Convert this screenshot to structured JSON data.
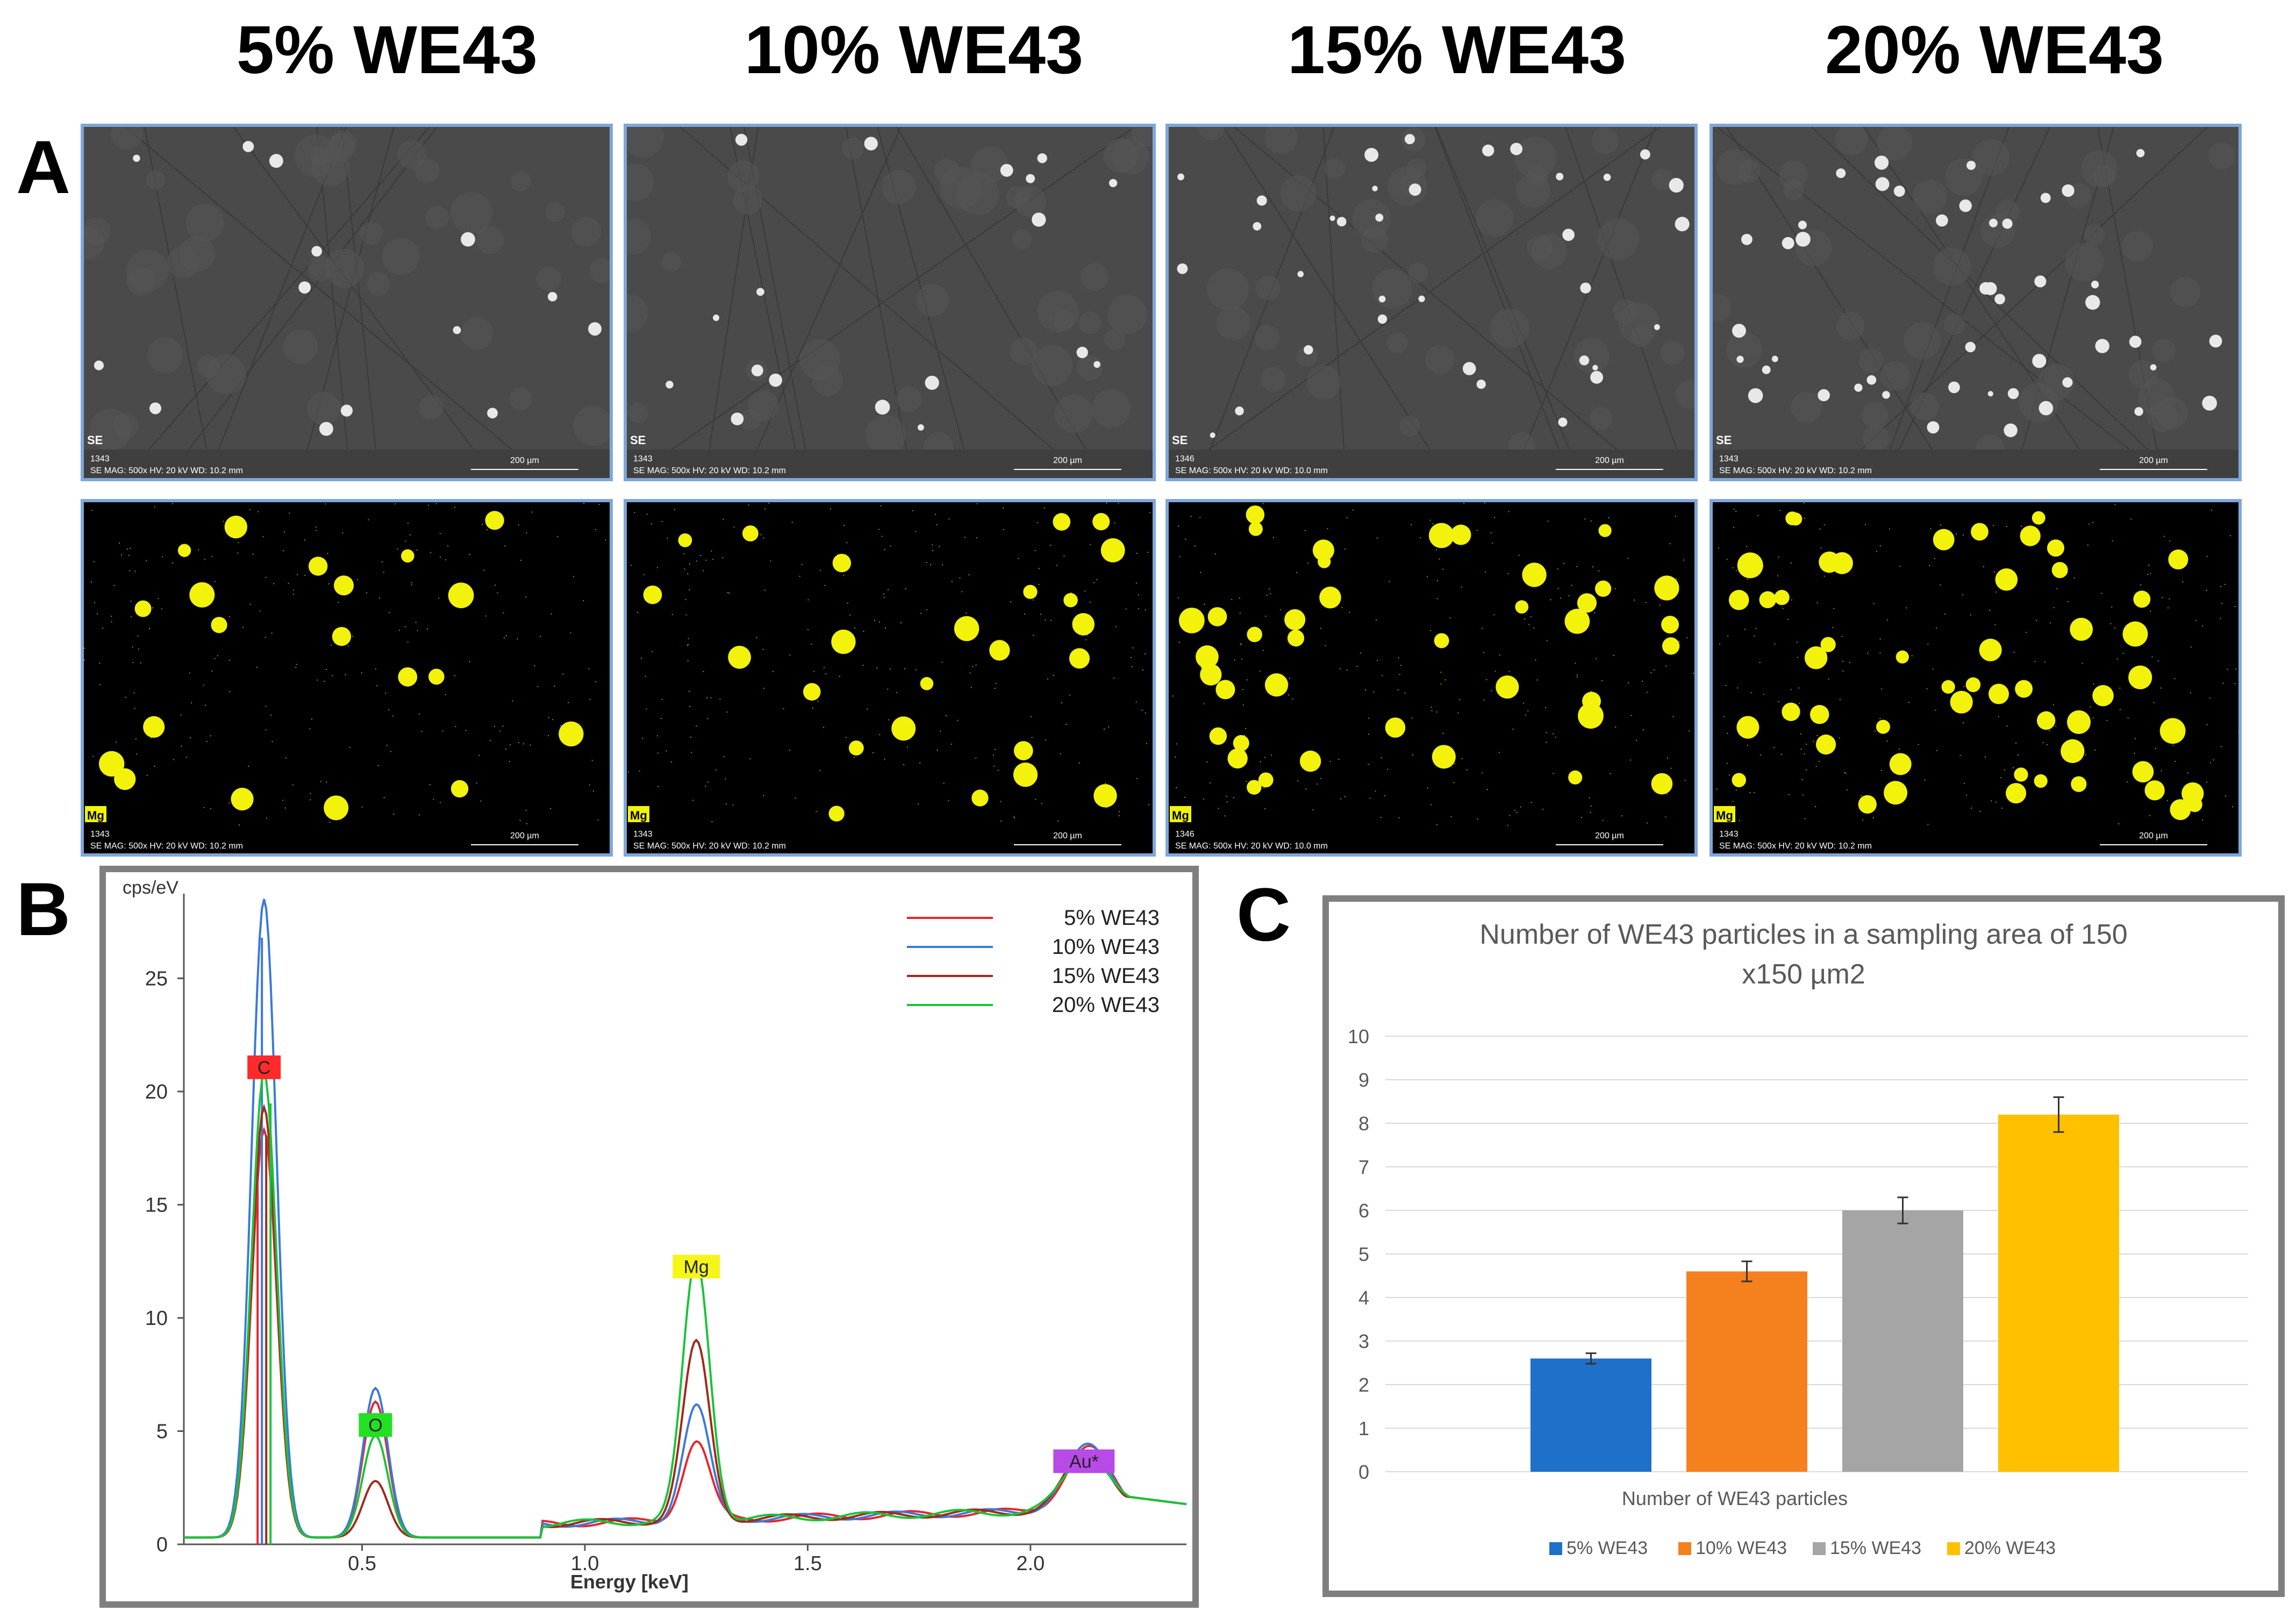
{
  "columns": [
    "5% WE43",
    "10% WE43",
    "15% WE43",
    "20% WE43"
  ],
  "panel_letters": {
    "a": "A",
    "b": "B",
    "c": "C"
  },
  "micrographs": {
    "se_tag": "SE",
    "mg_tag": "Mg",
    "scale_label": "200 µm",
    "panels": [
      {
        "id": "1343",
        "info": "SE   MAG: 500x   HV: 20 kV   WD: 10.2 mm"
      },
      {
        "id": "1343",
        "info": "SE   MAG: 500x   HV: 20 kV   WD: 10.2 mm"
      },
      {
        "id": "1346",
        "info": "SE   MAG: 500x   HV: 20 kV   WD: 10.0 mm"
      },
      {
        "id": "1343",
        "info": "SE   MAG: 500x   HV: 20 kV   WD: 10.2 mm"
      }
    ],
    "mg_color": "#f2f20a"
  },
  "chart_data": [
    {
      "type": "line",
      "ylabel": "cps/eV",
      "xlabel": "Energy [keV]",
      "xlim": [
        0.1,
        2.35
      ],
      "ylim": [
        0,
        28.5
      ],
      "xticks": [
        0.5,
        1.0,
        1.5,
        2.0
      ],
      "xtick_labels": [
        "0.5",
        "1.0",
        "1.5",
        "2.0"
      ],
      "yticks": [
        0,
        5,
        10,
        15,
        20,
        25
      ],
      "element_labels": [
        {
          "label": "C",
          "x": 0.28,
          "color": "#ff2a2a"
        },
        {
          "label": "O",
          "x": 0.53,
          "color": "#22e022"
        },
        {
          "label": "Mg",
          "x": 1.25,
          "color": "#f5f51a"
        },
        {
          "label": "Au*",
          "x": 2.12,
          "color": "#b84ae8"
        }
      ],
      "series": [
        {
          "name": "5% WE43",
          "color": "#e8262b",
          "peaks": {
            "C": 18.0,
            "O": 6.0,
            "Mg": 3.5,
            "Au": 2.7
          }
        },
        {
          "name": "10% WE43",
          "color": "#3a7ad8",
          "peaks": {
            "C": 28.2,
            "O": 6.6,
            "Mg": 5.0,
            "Au": 2.8
          }
        },
        {
          "name": "15% WE43",
          "color": "#a02a1a",
          "peaks": {
            "C": 19.0,
            "O": 2.5,
            "Mg": 7.8,
            "Au": 2.6
          }
        },
        {
          "name": "20% WE43",
          "color": "#19c33a",
          "peaks": {
            "C": 20.5,
            "O": 4.5,
            "Mg": 11.5,
            "Au": 2.5
          }
        }
      ]
    },
    {
      "type": "bar",
      "title": "Number of WE43 particles in a sampling area of 150 x150 µm2",
      "title_lines": [
        "Number of WE43 particles in a sampling area of 150",
        "x150 µm2"
      ],
      "xlabel": "Number of WE43 particles",
      "ylim": [
        0,
        10
      ],
      "yticks": [
        0,
        1,
        2,
        3,
        4,
        5,
        6,
        7,
        8,
        9,
        10
      ],
      "series": [
        {
          "name": "5% WE43",
          "value": 2.6,
          "error": 0.12,
          "color": "#1f70c8"
        },
        {
          "name": "10% WE43",
          "value": 4.6,
          "error": 0.23,
          "color": "#f5801e"
        },
        {
          "name": "15% WE43",
          "value": 6.0,
          "error": 0.3,
          "color": "#a5a5a5"
        },
        {
          "name": "20% WE43",
          "value": 8.2,
          "error": 0.4,
          "color": "#ffc000"
        }
      ]
    }
  ]
}
